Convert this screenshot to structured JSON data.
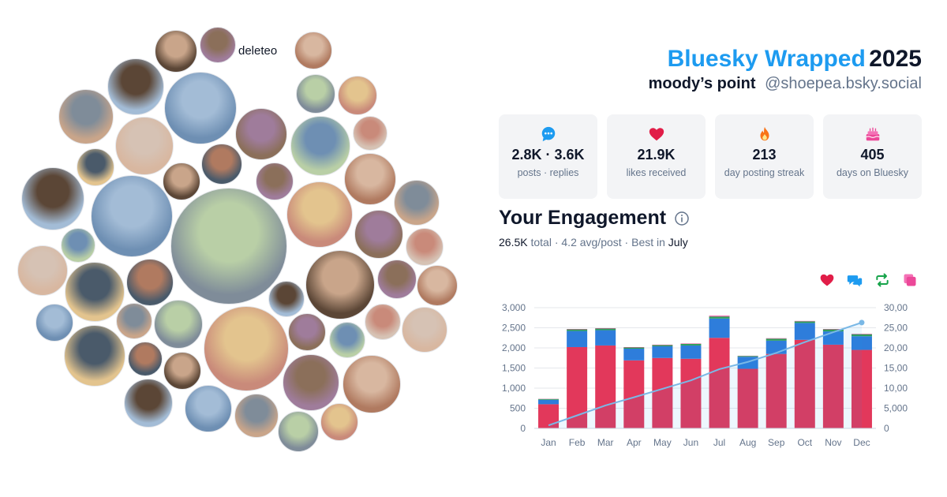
{
  "header": {
    "brand": "Bluesky Wrapped",
    "year": "2025",
    "display_name": "moody’s point",
    "handle": "@shoepea.bsky.social"
  },
  "avatar_cluster": {
    "deleted_label": "deleteo"
  },
  "stats": [
    {
      "icon": "chat-bubble-icon",
      "value": "2.8K · 3.6K",
      "label": "posts · replies",
      "color": "#1d9bf0"
    },
    {
      "icon": "heart-icon",
      "value": "21.9K",
      "label": "likes received",
      "color": "#e11d48"
    },
    {
      "icon": "flame-icon",
      "value": "213",
      "label": "day posting streak",
      "color": "#f97316"
    },
    {
      "icon": "cake-icon",
      "value": "405",
      "label": "days on Bluesky",
      "color": "#ec4899"
    }
  ],
  "engagement": {
    "title": "Your Engagement",
    "total_value": "26.5K",
    "total_text": "total · 4.2 avg/post · Best in",
    "best_month": "July"
  },
  "legend_icons": [
    {
      "icon": "heart-icon",
      "color": "#e11d48"
    },
    {
      "icon": "reply-icon",
      "color": "#1d9bf0"
    },
    {
      "icon": "repost-icon",
      "color": "#16a34a"
    },
    {
      "icon": "quote-icon",
      "color": "#ec4899"
    }
  ],
  "chart_data": {
    "type": "bar",
    "stacked": true,
    "categories": [
      "Jan",
      "Feb",
      "Mar",
      "Apr",
      "May",
      "Jun",
      "Jul",
      "Aug",
      "Sep",
      "Oct",
      "Nov",
      "Dec"
    ],
    "series": [
      {
        "values": [
          600,
          2020,
          2060,
          1690,
          1750,
          1730,
          2250,
          1480,
          1850,
          2200,
          2080,
          1950
        ],
        "color": "#e2385b"
      },
      {
        "values": [
          110,
          400,
          380,
          290,
          290,
          330,
          480,
          300,
          330,
          420,
          330,
          340
        ],
        "color": "#2e7ddb"
      },
      {
        "values": [
          20,
          40,
          40,
          30,
          30,
          40,
          50,
          20,
          50,
          40,
          50,
          50
        ],
        "color": "#2e9e5b"
      },
      {
        "values": [
          5,
          10,
          10,
          10,
          10,
          10,
          20,
          5,
          10,
          10,
          10,
          10
        ],
        "color": "#ec4899"
      }
    ],
    "cumulative_line": {
      "values": [
        740,
        3210,
        5700,
        7720,
        9810,
        11920,
        14720,
        16520,
        18770,
        21440,
        23910,
        26300
      ],
      "axis": "right",
      "color": "#7ab8e6"
    },
    "y_left": {
      "ticks": [
        "0",
        "500",
        "1,000",
        "1,500",
        "2,000",
        "2,500",
        "3,000"
      ],
      "min": 0,
      "max": 3000
    },
    "y_right": {
      "ticks": [
        "0",
        "5,000",
        "10,000",
        "15,000",
        "20,000",
        "25,000",
        "30,000"
      ],
      "min": 0,
      "max": 30000
    },
    "grid": true
  }
}
